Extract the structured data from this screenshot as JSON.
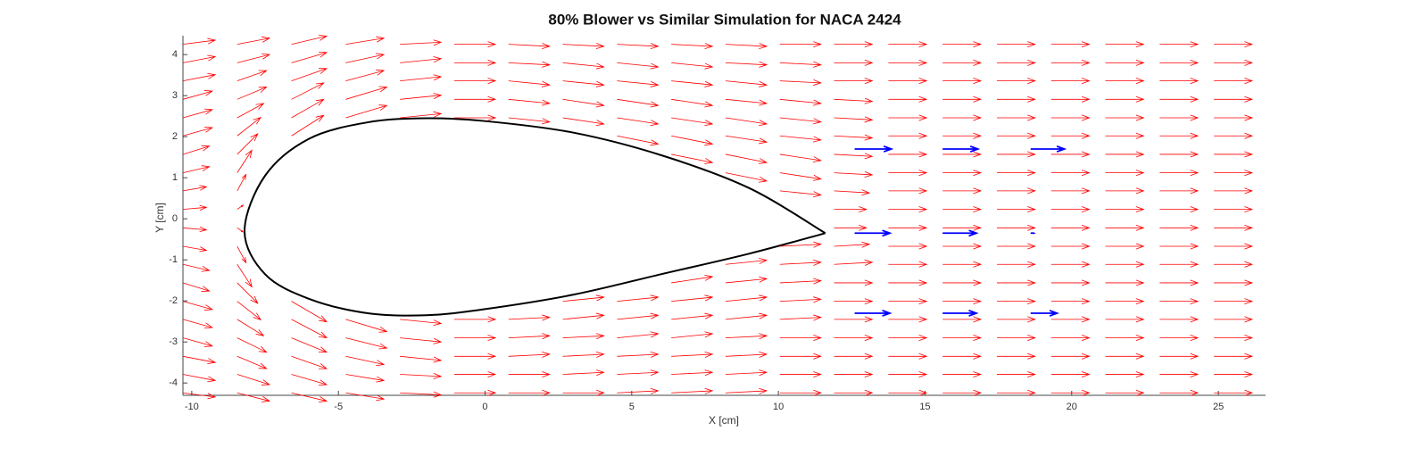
{
  "chart_data": {
    "type": "quiver",
    "title": "80% Blower vs Similar Simulation for NACA 2424",
    "x_label": "X [cm]",
    "y_label": "Y [cm]",
    "xlim": [
      -10.3,
      26.61
    ],
    "ylim": [
      -4.3,
      4.46
    ],
    "xticks": [
      -10,
      -5,
      0,
      5,
      10,
      15,
      20,
      25
    ],
    "yticks": [
      -4,
      -3,
      -2,
      -1,
      0,
      1,
      2,
      3,
      4
    ],
    "series": [
      {
        "color": "#ff0000",
        "x": [
          -10.3,
          -8.45,
          -6.6,
          -4.75,
          -2.9,
          -1.05,
          0.8,
          2.65,
          4.5,
          6.35,
          8.2,
          10.05,
          11.9,
          13.75,
          15.6,
          17.45,
          19.3,
          21.15,
          23,
          24.85
        ],
        "y": [
          4.25,
          3.8,
          3.36,
          2.91,
          2.46,
          2.02,
          1.57,
          1.12,
          0.68,
          0.23,
          -0.22,
          -0.67,
          -1.11,
          -1.56,
          -2.01,
          -2.45,
          -2.9,
          -3.35,
          -3.79,
          -4.24
        ],
        "u": [
          [
            1.1,
            1.1,
            1.1,
            1.0,
            1.0,
            1.0,
            0.9,
            0.9,
            0.8,
            0.8,
            0.8,
            0.8,
            0.9,
            0.9,
            1.0,
            1.0,
            1.0,
            1.1,
            1.1,
            1.1
          ],
          [
            1.1,
            1.1,
            1.0,
            1.0,
            0.9,
            0.8,
            0.7,
            0.5,
            0.3,
            0.2,
            0.2,
            0.3,
            0.5,
            0.7,
            0.8,
            0.9,
            1.0,
            1.0,
            1.1,
            1.1
          ],
          [
            1.2,
            1.2,
            1.2,
            1.1,
            1.1,
            1.1,
            null,
            null,
            null,
            null,
            null,
            null,
            null,
            null,
            1.2,
            1.2,
            1.2,
            1.2,
            1.2,
            1.2
          ],
          [
            1.3,
            1.3,
            1.3,
            1.4,
            1.4,
            null,
            null,
            null,
            null,
            null,
            null,
            null,
            null,
            null,
            null,
            1.4,
            1.4,
            1.3,
            1.3,
            1.3
          ],
          [
            1.4,
            1.4,
            1.4,
            1.4,
            1.4,
            null,
            null,
            null,
            null,
            null,
            null,
            null,
            null,
            null,
            null,
            1.4,
            1.4,
            1.4,
            1.4,
            1.4
          ],
          [
            1.4,
            1.4,
            1.4,
            1.4,
            1.4,
            null,
            null,
            null,
            null,
            null,
            null,
            null,
            null,
            null,
            null,
            1.4,
            1.4,
            1.4,
            1.4,
            1.4
          ],
          [
            1.4,
            1.4,
            1.4,
            1.4,
            1.4,
            null,
            null,
            null,
            null,
            null,
            null,
            null,
            null,
            null,
            null,
            1.4,
            1.4,
            1.4,
            1.4,
            1.4
          ],
          [
            1.4,
            1.4,
            1.4,
            1.4,
            1.4,
            null,
            null,
            null,
            null,
            null,
            null,
            null,
            null,
            null,
            1.4,
            1.4,
            1.4,
            1.4,
            1.4,
            1.4
          ],
          [
            1.4,
            1.4,
            1.4,
            1.4,
            1.4,
            1.4,
            null,
            null,
            null,
            null,
            null,
            null,
            null,
            null,
            1.4,
            1.4,
            1.4,
            1.4,
            1.4,
            1.4
          ],
          [
            1.4,
            1.4,
            1.4,
            1.4,
            1.4,
            1.4,
            1.4,
            null,
            null,
            null,
            null,
            null,
            null,
            1.4,
            1.4,
            1.4,
            1.4,
            1.4,
            1.4,
            1.4
          ],
          [
            1.4,
            1.4,
            1.4,
            1.4,
            1.4,
            1.4,
            1.4,
            1.4,
            null,
            null,
            null,
            null,
            1.4,
            1.4,
            1.4,
            1.4,
            1.4,
            1.4,
            1.4,
            1.4
          ],
          [
            1.4,
            1.4,
            1.4,
            1.4,
            1.4,
            1.4,
            1.4,
            1.4,
            1.4,
            null,
            null,
            1.4,
            1.4,
            1.4,
            1.4,
            1.4,
            1.4,
            1.4,
            1.4,
            1.4
          ],
          [
            1.3,
            1.3,
            1.3,
            1.3,
            1.3,
            1.3,
            1.3,
            1.3,
            1.2,
            1.1,
            1.1,
            1.2,
            1.3,
            1.3,
            1.3,
            1.3,
            1.3,
            1.3,
            1.3,
            1.3
          ],
          [
            1.3,
            1.3,
            1.3,
            1.3,
            1.3,
            1.3,
            1.3,
            1.3,
            1.3,
            1.3,
            1.3,
            1.3,
            1.3,
            1.3,
            1.3,
            1.3,
            1.3,
            1.3,
            1.3,
            1.3
          ],
          [
            1.3,
            1.3,
            1.3,
            1.3,
            1.3,
            1.3,
            1.3,
            1.3,
            1.3,
            1.3,
            1.3,
            1.3,
            1.3,
            1.3,
            1.3,
            1.3,
            1.3,
            1.3,
            1.3,
            1.3
          ],
          [
            1.3,
            1.3,
            1.3,
            1.3,
            1.3,
            1.3,
            1.3,
            1.3,
            1.3,
            1.3,
            1.3,
            1.3,
            1.3,
            1.3,
            1.3,
            1.3,
            1.3,
            1.3,
            1.3,
            1.3
          ],
          [
            1.3,
            1.3,
            1.3,
            1.3,
            1.3,
            1.3,
            1.3,
            1.3,
            1.3,
            1.3,
            1.3,
            1.3,
            1.3,
            1.3,
            1.3,
            1.3,
            1.3,
            1.3,
            1.3,
            1.3
          ],
          [
            1.3,
            1.3,
            1.3,
            1.3,
            1.3,
            1.3,
            1.3,
            1.3,
            1.3,
            1.3,
            1.3,
            1.3,
            1.3,
            1.3,
            1.3,
            1.3,
            1.3,
            1.3,
            1.3,
            1.3
          ],
          [
            1.3,
            1.3,
            1.3,
            1.3,
            1.3,
            1.3,
            1.3,
            1.3,
            1.3,
            1.3,
            1.3,
            1.3,
            1.3,
            1.3,
            1.3,
            1.3,
            1.3,
            1.3,
            1.3,
            1.3
          ],
          [
            1.3,
            1.3,
            1.3,
            1.3,
            1.3,
            1.3,
            1.3,
            1.3,
            1.3,
            1.3,
            1.3,
            1.3,
            1.3,
            1.3,
            1.3,
            1.3,
            1.3,
            1.3,
            1.3,
            1.3
          ]
        ],
        "v": [
          [
            0.1,
            0.15,
            0.15,
            0.2,
            0.2,
            0.2,
            0.2,
            0.15,
            0.1,
            0.05,
            -0.05,
            -0.1,
            -0.15,
            -0.2,
            -0.2,
            -0.2,
            -0.2,
            -0.15,
            -0.15,
            -0.1
          ],
          [
            0.15,
            0.2,
            0.25,
            0.3,
            0.35,
            0.45,
            0.5,
            0.55,
            0.4,
            0.1,
            -0.1,
            -0.4,
            -0.55,
            -0.5,
            -0.45,
            -0.4,
            -0.35,
            -0.3,
            -0.25,
            -0.2
          ],
          [
            0.2,
            0.25,
            0.3,
            0.4,
            0.45,
            0.5,
            null,
            null,
            null,
            null,
            null,
            null,
            null,
            null,
            -0.5,
            -0.45,
            -0.35,
            -0.3,
            -0.25,
            -0.2
          ],
          [
            0.15,
            0.2,
            0.25,
            0.3,
            0.3,
            null,
            null,
            null,
            null,
            null,
            null,
            null,
            null,
            null,
            null,
            -0.3,
            -0.25,
            -0.2,
            -0.15,
            -0.15
          ],
          [
            0.05,
            0.1,
            0.1,
            0.1,
            0.1,
            null,
            null,
            null,
            null,
            null,
            null,
            null,
            null,
            null,
            null,
            -0.1,
            -0.1,
            -0.1,
            -0.05,
            -0.05
          ],
          [
            0,
            0,
            0,
            0,
            0,
            null,
            null,
            null,
            null,
            null,
            null,
            null,
            null,
            null,
            null,
            0,
            0,
            0,
            0,
            0
          ],
          [
            -0.05,
            -0.05,
            -0.1,
            -0.1,
            -0.1,
            null,
            null,
            null,
            null,
            null,
            null,
            null,
            null,
            null,
            null,
            0.05,
            0.05,
            0.05,
            0,
            0
          ],
          [
            -0.05,
            -0.1,
            -0.1,
            -0.15,
            -0.15,
            null,
            null,
            null,
            null,
            null,
            null,
            null,
            null,
            null,
            0.1,
            0.1,
            0.05,
            0.05,
            0.05,
            0
          ],
          [
            -0.05,
            -0.1,
            -0.1,
            -0.15,
            -0.15,
            -0.2,
            null,
            null,
            null,
            null,
            null,
            null,
            null,
            null,
            0.1,
            0.1,
            0.1,
            0.05,
            0.05,
            0.05
          ],
          [
            -0.05,
            -0.1,
            -0.1,
            -0.15,
            -0.15,
            -0.2,
            -0.2,
            null,
            null,
            null,
            null,
            null,
            null,
            0.15,
            0.1,
            0.1,
            0.1,
            0.05,
            0.05,
            0.05
          ],
          [
            -0.05,
            -0.05,
            -0.1,
            -0.1,
            -0.15,
            -0.15,
            -0.2,
            -0.2,
            null,
            null,
            null,
            null,
            0.1,
            0.1,
            0.1,
            0.1,
            0.05,
            0.05,
            0.05,
            0.05
          ],
          [
            0,
            -0.05,
            -0.05,
            -0.1,
            -0.1,
            -0.1,
            -0.15,
            -0.15,
            -0.1,
            null,
            null,
            0.05,
            0.05,
            0.05,
            0.05,
            0.05,
            0,
            0,
            0,
            0
          ],
          [
            0,
            0,
            0,
            -0.05,
            -0.05,
            -0.05,
            -0.05,
            -0.05,
            -0.05,
            0,
            0,
            0.05,
            0.05,
            0,
            0,
            0,
            0,
            0,
            0,
            0
          ],
          [
            0,
            0,
            0,
            0,
            0,
            0,
            0,
            0,
            0,
            0,
            0,
            0,
            0,
            0,
            0,
            0,
            0,
            0,
            0,
            0
          ],
          [
            0,
            0,
            0,
            0,
            0,
            0,
            0,
            0,
            0,
            0,
            0,
            0,
            0,
            0,
            0,
            0,
            0,
            0,
            0,
            0
          ],
          [
            0,
            0,
            0,
            0,
            0,
            0,
            0,
            0,
            0,
            0,
            0,
            0,
            0,
            0,
            0,
            0,
            0,
            0,
            0,
            0
          ],
          [
            0,
            0,
            0,
            0,
            0,
            0,
            0,
            0,
            0,
            0,
            0,
            0,
            0,
            0,
            0,
            0,
            0,
            0,
            0,
            0
          ],
          [
            0,
            0,
            0,
            0,
            0,
            0,
            0,
            0,
            0,
            0,
            0,
            0,
            0,
            0,
            0,
            0,
            0,
            0,
            0,
            0
          ],
          [
            0,
            0,
            0,
            0,
            0,
            0,
            0,
            0,
            0,
            0,
            0,
            0,
            0,
            0,
            0,
            0,
            0,
            0,
            0,
            0
          ],
          [
            0,
            0,
            0,
            0,
            0,
            0,
            0,
            0,
            0,
            0,
            0,
            0,
            0,
            0,
            0,
            0,
            0,
            0,
            0,
            0
          ]
        ]
      },
      {
        "color": "#0000ff",
        "points": true,
        "x": [
          12.6,
          12.6,
          12.6,
          15.6,
          15.6,
          15.6,
          18.6,
          18.6,
          18.6
        ],
        "y": [
          1.7,
          -0.35,
          -2.3,
          1.7,
          -0.35,
          -2.3,
          1.7,
          -0.35,
          -2.3
        ],
        "u": [
          1.25,
          1.2,
          1.2,
          1.2,
          1.15,
          1.15,
          1.15,
          0.1,
          0.9
        ],
        "v": [
          0,
          0,
          0,
          0,
          0,
          0,
          0,
          0,
          0
        ]
      }
    ],
    "outline": {
      "color": "#000000",
      "x": [
        11.6,
        9,
        6,
        3,
        0,
        -2,
        -4,
        -6,
        -7.5,
        -8.2,
        -7.5,
        -6,
        -4,
        -2,
        0,
        3,
        6,
        9,
        11.6
      ],
      "y": [
        -0.35,
        0.75,
        1.55,
        2.1,
        2.38,
        2.45,
        2.35,
        1.95,
        1.05,
        -0.3,
        -1.35,
        -1.95,
        -2.3,
        -2.35,
        -2.2,
        -1.85,
        -1.35,
        -0.85,
        -0.35
      ]
    }
  }
}
